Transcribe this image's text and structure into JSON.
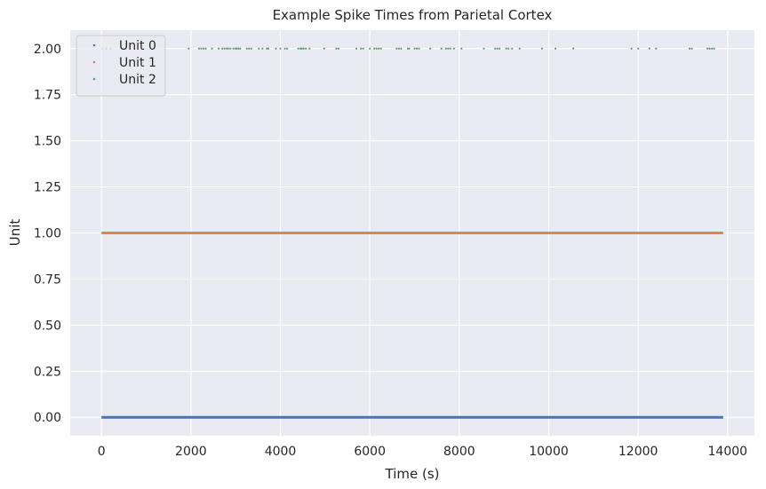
{
  "chart_data": {
    "type": "scatter",
    "title": "Example Spike Times from Parietal Cortex",
    "xlabel": "Time (s)",
    "ylabel": "Unit",
    "xlim": [
      -700,
      14600
    ],
    "ylim": [
      -0.1,
      2.1
    ],
    "xticks": [
      0,
      2000,
      4000,
      6000,
      8000,
      10000,
      12000,
      14000
    ],
    "xtick_labels": [
      "0",
      "2000",
      "4000",
      "6000",
      "8000",
      "10000",
      "12000",
      "14000"
    ],
    "yticks": [
      0.0,
      0.25,
      0.5,
      0.75,
      1.0,
      1.25,
      1.5,
      1.75,
      2.0
    ],
    "ytick_labels": [
      "0.00",
      "0.25",
      "0.50",
      "0.75",
      "1.00",
      "1.25",
      "1.50",
      "1.75",
      "2.00"
    ],
    "grid": true,
    "legend_position": "top-left",
    "series": [
      {
        "name": "Unit 0",
        "color": "#4c72b0",
        "y": 0,
        "dense_range": [
          0,
          13900
        ],
        "x": []
      },
      {
        "name": "Unit 1",
        "color": "#dd8452",
        "y": 1,
        "dense_range": [
          0,
          13900
        ],
        "x": []
      },
      {
        "name": "Unit 2",
        "color": "#55a868",
        "y": 2,
        "dense_range": null,
        "x": [
          20,
          100,
          200,
          1950,
          2180,
          2230,
          2280,
          2330,
          2470,
          2620,
          2700,
          2750,
          2800,
          2830,
          2880,
          2950,
          3000,
          3020,
          3060,
          3100,
          3250,
          3300,
          3350,
          3520,
          3600,
          3700,
          3730,
          3900,
          4000,
          4100,
          4150,
          4400,
          4450,
          4480,
          4520,
          4570,
          4650,
          4980,
          5250,
          5300,
          5700,
          5800,
          5850,
          6000,
          6100,
          6150,
          6200,
          6250,
          6600,
          6650,
          6700,
          6850,
          6880,
          7000,
          7050,
          7100,
          7350,
          7600,
          7700,
          7750,
          7800,
          7880,
          8050,
          8550,
          8800,
          8850,
          8900,
          9050,
          9100,
          9180,
          9350,
          9850,
          10150,
          10550,
          11850,
          12000,
          12250,
          12400,
          13150,
          13200,
          13550,
          13600,
          13650,
          13700
        ]
      }
    ]
  }
}
